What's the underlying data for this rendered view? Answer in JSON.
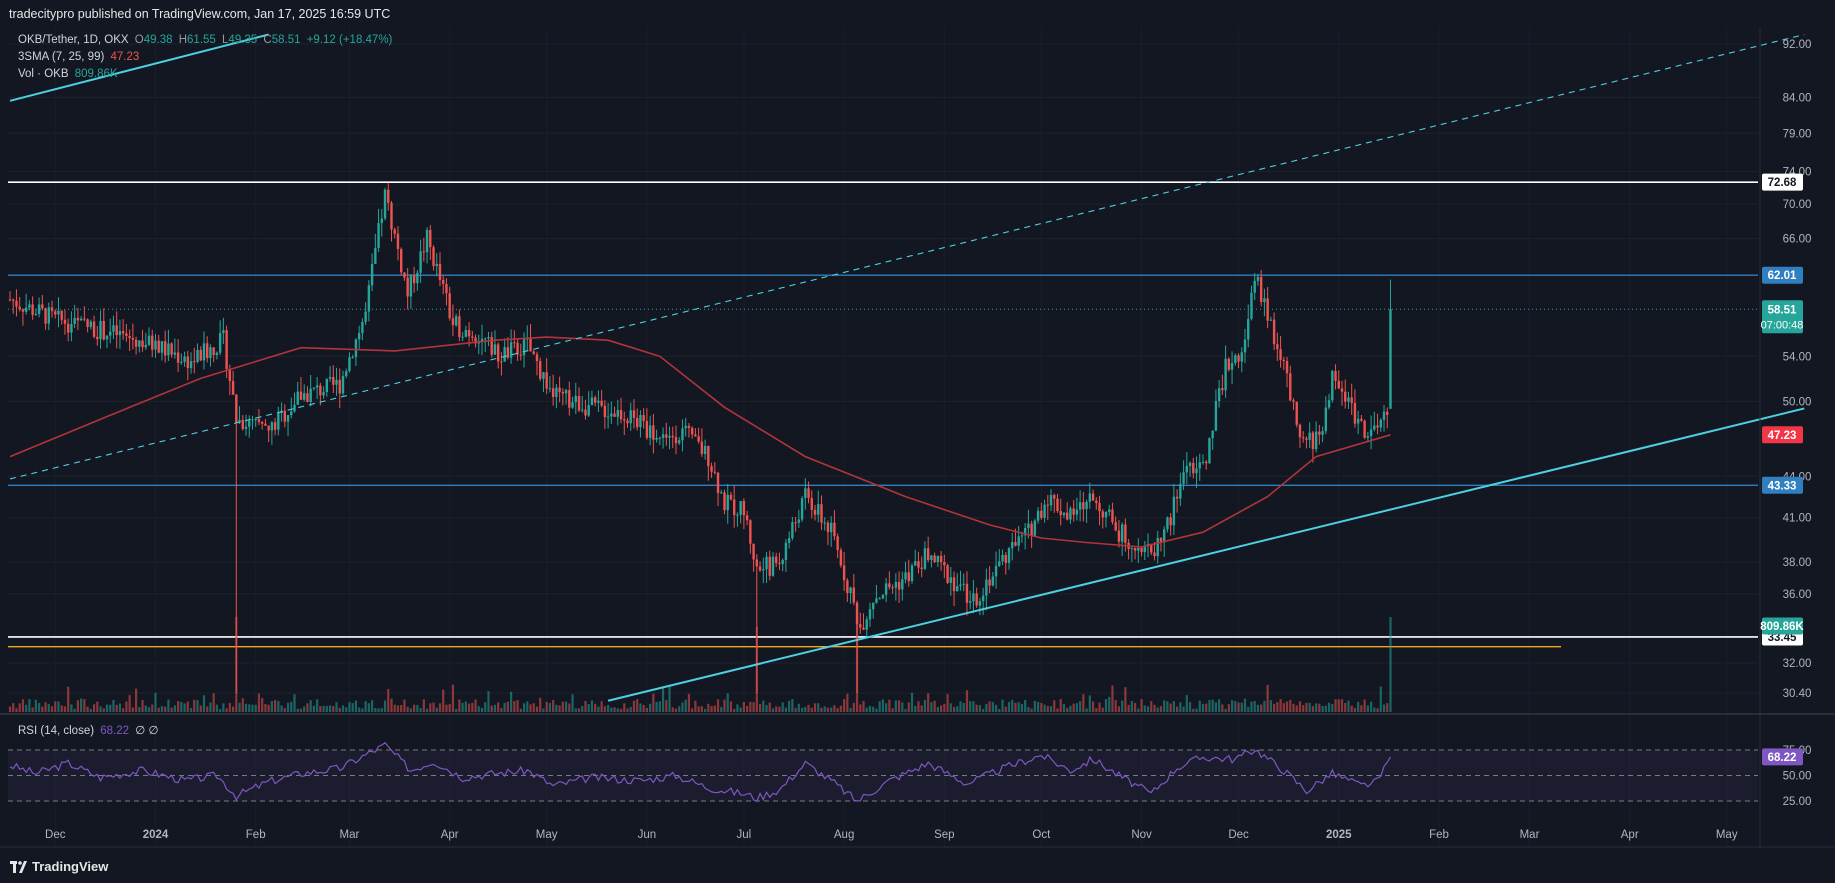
{
  "header": {
    "publish_text": "tradecitypro published on TradingView.com, Jan 17, 2025 16:59 UTC"
  },
  "legend": {
    "symbol": "OKB/Tether, 1D, OKX",
    "o_label": "O",
    "o": "49.38",
    "h_label": "H",
    "h": "61.55",
    "l_label": "L",
    "l": "49.35",
    "c_label": "C",
    "c": "58.51",
    "change": "+9.12 (+18.47%)",
    "sma_label": "3SMA (7, 25, 99)",
    "sma_value": "47.23",
    "vol_label": "Vol · OKB",
    "vol_value": "809.86K",
    "rsi_label": "RSI (14, close)",
    "rsi_value": "68.22",
    "rsi_extra": "∅ ∅"
  },
  "footer": {
    "brand": "TradingView"
  },
  "colors": {
    "background": "#131722",
    "up": "#26a69a",
    "down": "#ef5350",
    "sma": "#b2343a",
    "trend": "#4dd0e1",
    "level_blue": "#2f7fc1",
    "level_white": "#ffffff",
    "level_orange": "#f5a623",
    "rsi": "#7e57c2"
  },
  "chart_data": {
    "type": "candlestick",
    "symbol": "OKB/Tether",
    "interval": "1D",
    "exchange": "OKX",
    "scale": "log",
    "y_ticks": [
      92.0,
      84.0,
      79.0,
      74.0,
      70.0,
      66.0,
      54.0,
      50.0,
      44.0,
      41.0,
      38.0,
      36.0,
      32.0,
      30.4
    ],
    "x_ticks": [
      "Dec",
      "2024",
      "Feb",
      "Mar",
      "Apr",
      "May",
      "Jun",
      "Jul",
      "Aug",
      "Sep",
      "Oct",
      "Nov",
      "Dec",
      "2025",
      "Feb",
      "Mar",
      "Apr",
      "May"
    ],
    "last_price": {
      "value": "58.51",
      "countdown": "07:00:48"
    },
    "horizontal_levels": [
      {
        "value": 72.68,
        "label": "72.68",
        "color": "white"
      },
      {
        "value": 62.01,
        "label": "62.01",
        "color": "blue"
      },
      {
        "value": 43.33,
        "label": "43.33",
        "color": "blue"
      },
      {
        "value": 33.45,
        "label": "33.45",
        "color": "white"
      },
      {
        "value": 32.9,
        "label": "",
        "color": "orange"
      }
    ],
    "sma_value_label": "47.23",
    "volume_label": "809.86K",
    "price_path": [
      [
        "2023-11-17",
        59.5
      ],
      [
        "2023-12-01",
        57.5
      ],
      [
        "2023-12-15",
        56.5
      ],
      [
        "2024-01-01",
        55
      ],
      [
        "2024-01-12",
        53.5
      ],
      [
        "2024-01-22",
        55.5
      ],
      [
        "2024-01-26",
        48.5
      ],
      [
        "2024-02-05",
        47.5
      ],
      [
        "2024-02-15",
        50.5
      ],
      [
        "2024-02-27",
        51.5
      ],
      [
        "2024-03-06",
        58
      ],
      [
        "2024-03-12",
        71
      ],
      [
        "2024-03-19",
        60
      ],
      [
        "2024-03-25",
        66
      ],
      [
        "2024-04-02",
        57
      ],
      [
        "2024-04-10",
        56
      ],
      [
        "2024-04-16",
        54
      ],
      [
        "2024-04-25",
        55
      ],
      [
        "2024-05-03",
        50.5
      ],
      [
        "2024-05-15",
        49.5
      ],
      [
        "2024-05-25",
        49
      ],
      [
        "2024-06-05",
        47
      ],
      [
        "2024-06-12",
        47.5
      ],
      [
        "2024-06-20",
        45.5
      ],
      [
        "2024-06-25",
        42
      ],
      [
        "2024-07-01",
        41.5
      ],
      [
        "2024-07-05",
        37.5
      ],
      [
        "2024-07-12",
        38
      ],
      [
        "2024-07-20",
        42.5
      ],
      [
        "2024-07-28",
        40
      ],
      [
        "2024-08-03",
        36
      ],
      [
        "2024-08-06",
        34
      ],
      [
        "2024-08-10",
        35.8
      ],
      [
        "2024-08-20",
        37
      ],
      [
        "2024-08-27",
        38.5
      ],
      [
        "2024-09-03",
        37
      ],
      [
        "2024-09-10",
        35.5
      ],
      [
        "2024-09-20",
        38.5
      ],
      [
        "2024-09-27",
        40
      ],
      [
        "2024-10-03",
        42.5
      ],
      [
        "2024-10-10",
        41
      ],
      [
        "2024-10-17",
        42.5
      ],
      [
        "2024-10-25",
        40
      ],
      [
        "2024-11-04",
        38.5
      ],
      [
        "2024-11-10",
        41
      ],
      [
        "2024-11-15",
        45
      ],
      [
        "2024-11-20",
        44.5
      ],
      [
        "2024-11-27",
        53
      ],
      [
        "2024-12-03",
        55
      ],
      [
        "2024-12-06",
        62
      ],
      [
        "2024-12-10",
        58
      ],
      [
        "2024-12-15",
        53
      ],
      [
        "2024-12-20",
        46.5
      ],
      [
        "2024-12-26",
        47
      ],
      [
        "2024-12-30",
        52
      ],
      [
        "2025-01-04",
        50
      ],
      [
        "2025-01-08",
        48
      ],
      [
        "2025-01-12",
        47.2
      ],
      [
        "2025-01-16",
        49.4
      ],
      [
        "2025-01-17",
        58.51
      ]
    ],
    "sma99_path": [
      [
        "2023-11-17",
        45.5
      ],
      [
        "2023-12-15",
        48.5
      ],
      [
        "2024-01-15",
        52
      ],
      [
        "2024-02-15",
        54.8
      ],
      [
        "2024-03-15",
        54.5
      ],
      [
        "2024-04-15",
        55.5
      ],
      [
        "2024-05-01",
        55.8
      ],
      [
        "2024-05-20",
        55.5
      ],
      [
        "2024-06-05",
        54
      ],
      [
        "2024-06-25",
        49.5
      ],
      [
        "2024-07-20",
        45.5
      ],
      [
        "2024-08-20",
        42.5
      ],
      [
        "2024-09-15",
        40.5
      ],
      [
        "2024-10-01",
        39.6
      ],
      [
        "2024-10-15",
        39.3
      ],
      [
        "2024-11-01",
        39
      ],
      [
        "2024-11-20",
        40
      ],
      [
        "2024-12-10",
        42.5
      ],
      [
        "2024-12-25",
        45.5
      ],
      [
        "2025-01-17",
        47.23
      ]
    ],
    "trendlines": [
      {
        "style": "solid",
        "from": [
          "2024-05-20",
          30.0
        ],
        "to": [
          "2025-05-25",
          49.4
        ]
      },
      {
        "style": "dashed",
        "from": [
          "2023-11-17",
          43.8
        ],
        "to": [
          "2025-05-25",
          93.5
        ]
      },
      {
        "style": "solid",
        "from": [
          "2023-11-17",
          83.5
        ],
        "to": [
          "2024-02-05",
          93.5
        ]
      }
    ],
    "volume_spikes": [
      [
        "2024-01-26",
        1.0
      ],
      [
        "2024-07-05",
        0.8
      ],
      [
        "2024-08-05",
        0.95
      ],
      [
        "2025-01-17",
        1.0
      ]
    ],
    "rsi": {
      "levels": [
        75,
        50,
        25
      ],
      "y_ticks": [
        75.0,
        50.0,
        25.0
      ],
      "last": 68.22,
      "path": [
        [
          "2023-11-17",
          60
        ],
        [
          "2023-11-25",
          52
        ],
        [
          "2023-12-05",
          62
        ],
        [
          "2023-12-15",
          48
        ],
        [
          "2023-12-28",
          55
        ],
        [
          "2024-01-10",
          45
        ],
        [
          "2024-01-20",
          50
        ],
        [
          "2024-01-26",
          30
        ],
        [
          "2024-02-05",
          44
        ],
        [
          "2024-02-15",
          52
        ],
        [
          "2024-02-27",
          57
        ],
        [
          "2024-03-12",
          80
        ],
        [
          "2024-03-20",
          55
        ],
        [
          "2024-03-27",
          64
        ],
        [
          "2024-04-05",
          48
        ],
        [
          "2024-04-15",
          52
        ],
        [
          "2024-04-25",
          55
        ],
        [
          "2024-05-03",
          40
        ],
        [
          "2024-05-15",
          48
        ],
        [
          "2024-05-30",
          45
        ],
        [
          "2024-06-10",
          50
        ],
        [
          "2024-06-20",
          38
        ],
        [
          "2024-07-01",
          32
        ],
        [
          "2024-07-05",
          28
        ],
        [
          "2024-07-12",
          36
        ],
        [
          "2024-07-20",
          62
        ],
        [
          "2024-07-28",
          45
        ],
        [
          "2024-08-05",
          25
        ],
        [
          "2024-08-15",
          45
        ],
        [
          "2024-08-27",
          62
        ],
        [
          "2024-09-08",
          42
        ],
        [
          "2024-09-20",
          58
        ],
        [
          "2024-10-01",
          70
        ],
        [
          "2024-10-10",
          55
        ],
        [
          "2024-10-17",
          66
        ],
        [
          "2024-10-25",
          50
        ],
        [
          "2024-11-04",
          32
        ],
        [
          "2024-11-12",
          58
        ],
        [
          "2024-11-20",
          68
        ],
        [
          "2024-11-30",
          66
        ],
        [
          "2024-12-06",
          76
        ],
        [
          "2024-12-15",
          55
        ],
        [
          "2024-12-22",
          35
        ],
        [
          "2024-12-30",
          52
        ],
        [
          "2025-01-08",
          40
        ],
        [
          "2025-01-13",
          44
        ],
        [
          "2025-01-17",
          68.22
        ]
      ]
    }
  }
}
